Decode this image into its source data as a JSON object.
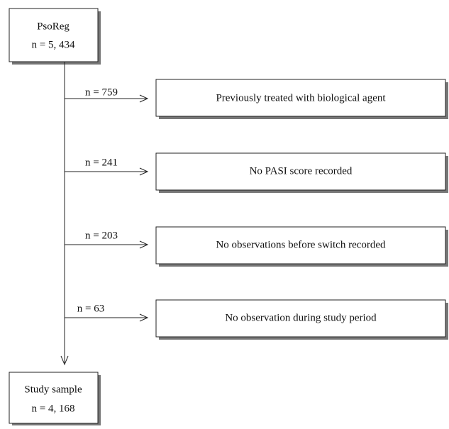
{
  "source": {
    "title": "PsoReg",
    "count": "n = 5, 434"
  },
  "exclusions": [
    {
      "count": "n = 759",
      "label": "Previously treated with biological agent"
    },
    {
      "count": "n = 241",
      "label": "No PASI score recorded"
    },
    {
      "count": "n = 203",
      "label": "No observations before switch recorded"
    },
    {
      "count": "n = 63",
      "label": "No observation during study period"
    }
  ],
  "sample": {
    "title": "Study sample",
    "count": "n = 4, 168"
  }
}
